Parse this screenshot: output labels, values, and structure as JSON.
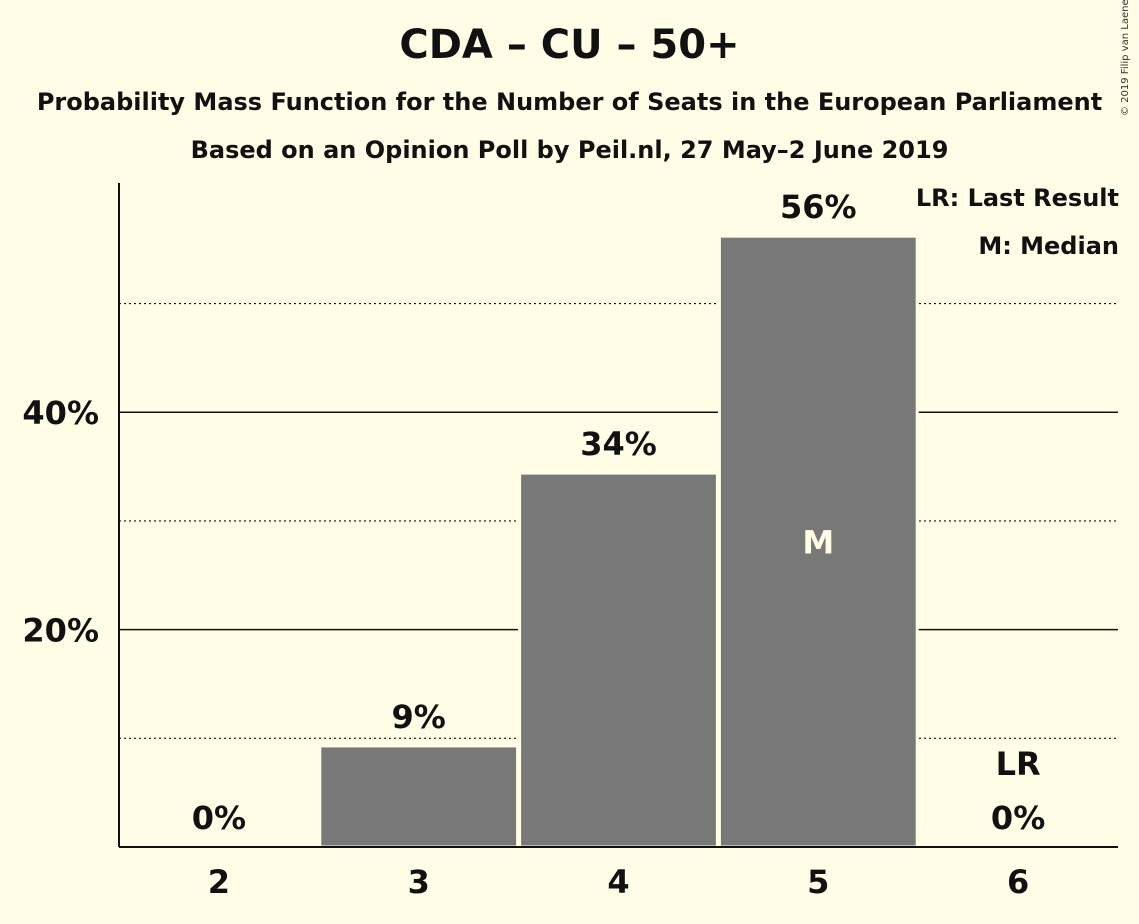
{
  "header": {
    "title": "CDA – CU – 50+",
    "subtitle": "Probability Mass Function for the Number of Seats in the European Parliament",
    "subtitle2": "Based on an Opinion Poll by Peil.nl, 27 May–2 June 2019",
    "copyright": "© 2019 Filip van Laenen"
  },
  "legend": {
    "last_result": "LR: Last Result",
    "median": "M: Median"
  },
  "colors": {
    "background": "#fffde6",
    "bar": "#787878",
    "text": "#111111"
  },
  "chart_data": {
    "type": "bar",
    "categories": [
      "2",
      "3",
      "4",
      "5",
      "6"
    ],
    "values": [
      0,
      9.3,
      34.4,
      56.2,
      0
    ],
    "value_labels": [
      "0%",
      "9%",
      "34%",
      "56%",
      "0%"
    ],
    "ylim": [
      0,
      61
    ],
    "yticks": [
      {
        "value": 20,
        "label": "20%"
      },
      {
        "value": 40,
        "label": "40%"
      }
    ],
    "minor_gridlines": [
      10,
      30,
      50
    ],
    "median_category": "5",
    "median_marker": "M",
    "last_result_category": "6",
    "last_result_marker": "LR",
    "xlabel": "",
    "ylabel": ""
  }
}
